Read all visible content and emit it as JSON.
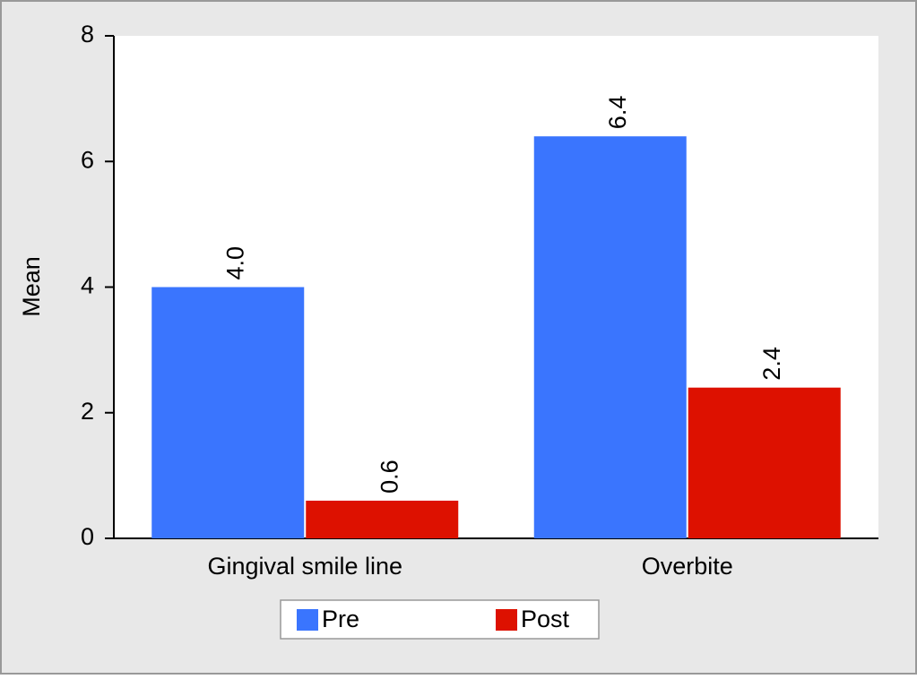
{
  "chart_data": {
    "type": "bar",
    "y_label": "Mean",
    "categories": [
      "Gingival smile line",
      "Overbite"
    ],
    "series": [
      {
        "name": "Pre",
        "color": "#3a75fe",
        "values": [
          4.0,
          6.4
        ],
        "value_labels": [
          "4.0",
          "6.4"
        ]
      },
      {
        "name": "Post",
        "color": "#dd1100",
        "values": [
          0.6,
          2.4
        ],
        "value_labels": [
          "0.6",
          "2.4"
        ]
      }
    ],
    "ylim": [
      0,
      8
    ],
    "yticks": [
      0,
      2,
      4,
      6,
      8
    ],
    "grid": false,
    "legend": "bottom"
  }
}
